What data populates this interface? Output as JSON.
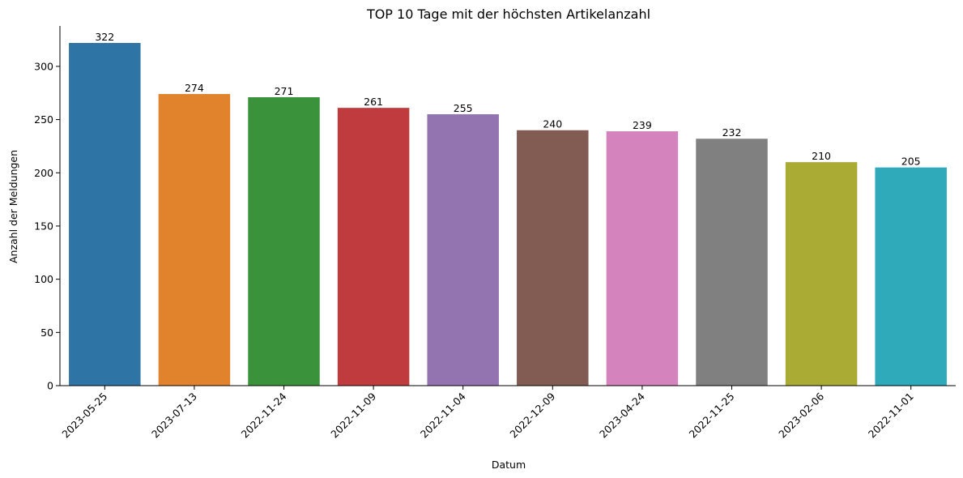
{
  "chart_data": {
    "type": "bar",
    "title": "TOP 10 Tage mit der höchsten Artikelanzahl",
    "xlabel": "Datum",
    "ylabel": "Anzahl der Meldungen",
    "categories": [
      "2023-05-25",
      "2023-07-13",
      "2022-11-24",
      "2022-11-09",
      "2022-11-04",
      "2022-12-09",
      "2023-04-24",
      "2022-11-25",
      "2023-02-06",
      "2022-11-01"
    ],
    "values": [
      322,
      274,
      271,
      261,
      255,
      240,
      239,
      232,
      210,
      205
    ],
    "colors": [
      "#2e75a6",
      "#e1822c",
      "#3a923a",
      "#bf3b3d",
      "#9374b0",
      "#825c53",
      "#d583bd",
      "#808080",
      "#a9ab35",
      "#2eaabb"
    ],
    "ylim": [
      0,
      338
    ],
    "yticks": [
      0,
      50,
      100,
      150,
      200,
      250,
      300
    ],
    "grid": false,
    "legend": "none"
  }
}
